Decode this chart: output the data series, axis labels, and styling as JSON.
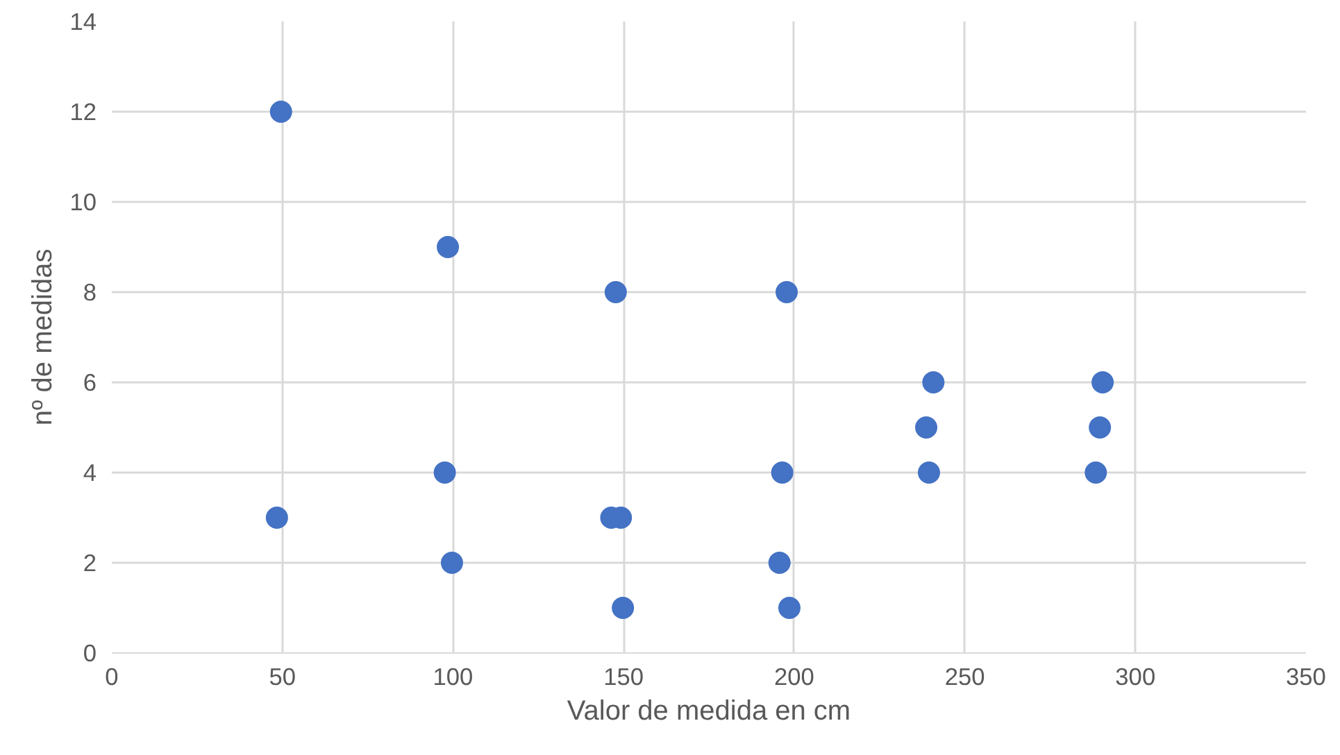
{
  "chart_data": {
    "type": "scatter",
    "xlabel": "Valor de medida en cm",
    "ylabel": "nº de medidas",
    "x": [
      49.6,
      48.4,
      98.5,
      97.6,
      99.7,
      147.7,
      146.4,
      149.2,
      149.8,
      197.8,
      196.5,
      195.7,
      198.6,
      240.8,
      238.7,
      239.5,
      290.4,
      289.6,
      288.4
    ],
    "values": [
      12,
      3,
      9,
      4,
      2,
      8,
      3,
      3,
      1,
      8,
      4,
      2,
      1,
      6,
      5,
      4,
      6,
      5,
      4
    ],
    "color": "#4472c4",
    "marker": "circle",
    "xlim": [
      0,
      350
    ],
    "xticks": [
      0,
      50,
      100,
      150,
      200,
      250,
      300,
      350
    ],
    "ylim": [
      0,
      14
    ],
    "yticks": [
      0,
      2,
      4,
      6,
      8,
      10,
      12,
      14
    ],
    "grid": true
  }
}
